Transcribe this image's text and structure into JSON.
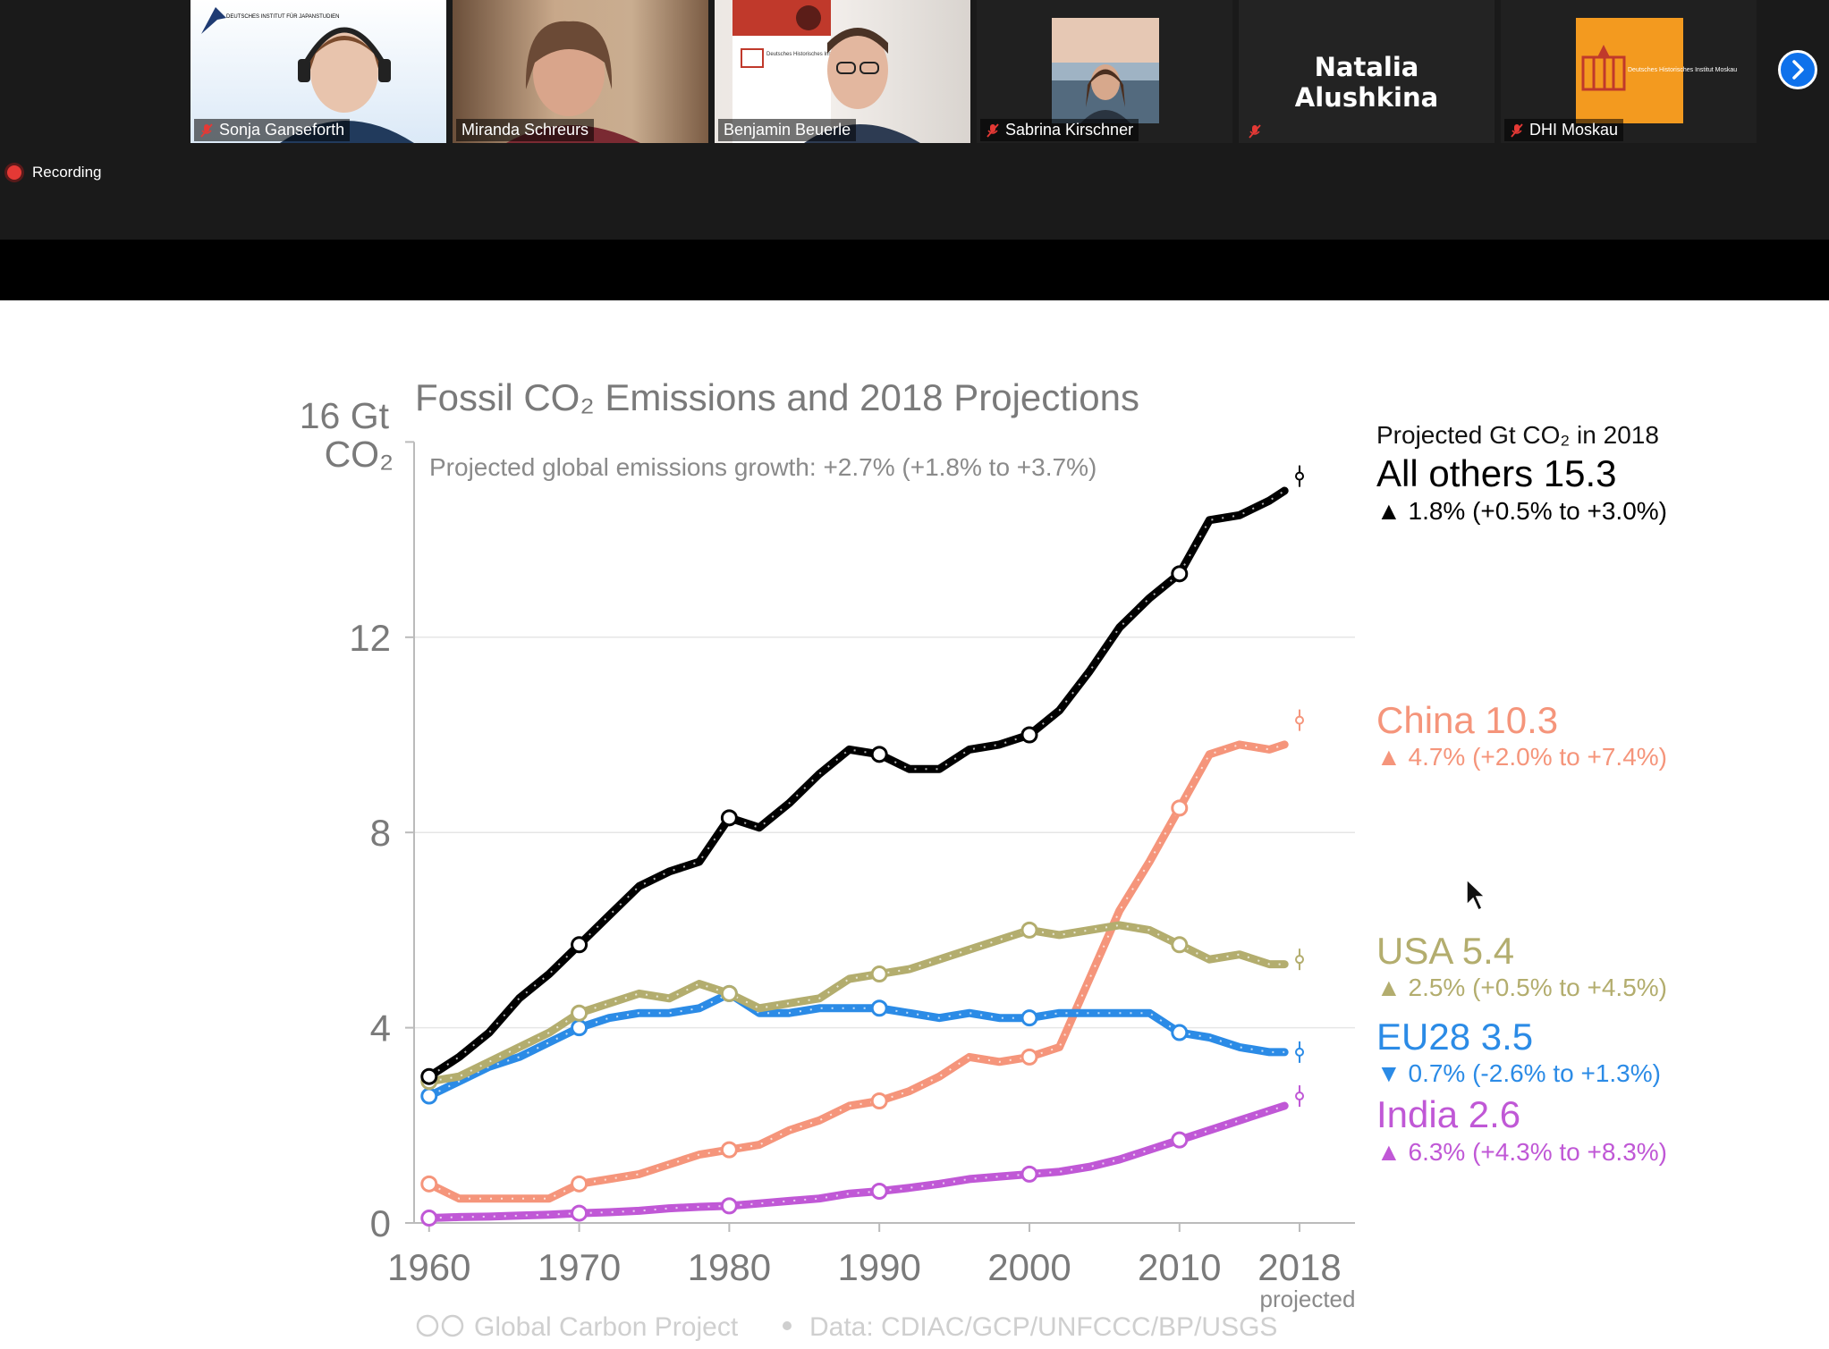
{
  "participants": [
    {
      "name": "Sonja Ganseforth",
      "muted": true,
      "logo_text": "DEUTSCHES INSTITUT FÜR JAPANSTUDIEN"
    },
    {
      "name": "Miranda Schreurs",
      "muted": false,
      "speaking": true
    },
    {
      "name": "Benjamin Beuerle",
      "muted": false,
      "poster_text": "Deutsches Historisches Institut Moskau"
    },
    {
      "name": "Sabrina Kirschner",
      "muted": true
    },
    {
      "name": "Natalia Alushkina",
      "muted": true
    },
    {
      "name": "DHI Moskau",
      "muted": true,
      "logo_text": "Deutsches Historisches Institut Moskau"
    }
  ],
  "recording_label": "Recording",
  "colors": {
    "accent": "#0e71eb",
    "speaking": "#8fd14f",
    "recording": "#e53935"
  },
  "slide": {
    "title": "Fossil CO₂ Emissions and 2018 Projections",
    "growth_note": "Projected global emissions growth: +2.7% (+1.8% to +3.7%)",
    "y_unit_line1": "16 Gt",
    "y_unit_line2": "CO₂",
    "projected_label": "projected",
    "footer_source": "Global Carbon Project",
    "footer_data": "Data: CDIAC/GCP/UNFCCC/BP/USGS",
    "legend_header": "Projected Gt CO₂ in 2018",
    "legend": [
      {
        "label": "All others 15.3",
        "growth": "▲ 1.8% (+0.5% to +3.0%)",
        "color": "#000000"
      },
      {
        "label": "China 10.3",
        "growth": "▲ 4.7% (+2.0% to +7.4%)",
        "color": "#f5957b"
      },
      {
        "label": "USA 5.4",
        "growth": "▲ 2.5% (+0.5% to +4.5%)",
        "color": "#b3ad6e"
      },
      {
        "label": "EU28 3.5",
        "growth": "▼ 0.7% (-2.6% to +1.3%)",
        "color": "#2b8be6"
      },
      {
        "label": "India 2.6",
        "growth": "▲ 6.3% (+4.3% to +8.3%)",
        "color": "#c058d6"
      }
    ]
  },
  "chart_data": {
    "type": "line",
    "title": "Fossil CO₂ Emissions and 2018 Projections",
    "ylabel": "Gt CO₂",
    "ylim": [
      0,
      16
    ],
    "xlim": [
      1959,
      2019
    ],
    "x_ticks": [
      "1960",
      "1970",
      "1980",
      "1990",
      "2000",
      "2010",
      "2018"
    ],
    "y_ticks": [
      "0",
      "4",
      "8",
      "12"
    ],
    "grid": true,
    "x": [
      1960,
      1962,
      1964,
      1966,
      1968,
      1970,
      1972,
      1974,
      1976,
      1978,
      1980,
      1982,
      1984,
      1986,
      1988,
      1990,
      1992,
      1994,
      1996,
      1998,
      2000,
      2002,
      2004,
      2006,
      2008,
      2010,
      2012,
      2014,
      2016,
      2017
    ],
    "series": [
      {
        "name": "All others",
        "color": "#000000",
        "projected": 15.3,
        "values": [
          3.0,
          3.4,
          3.9,
          4.6,
          5.1,
          5.7,
          6.3,
          6.9,
          7.2,
          7.4,
          8.3,
          8.1,
          8.6,
          9.2,
          9.7,
          9.6,
          9.3,
          9.3,
          9.7,
          9.8,
          10.0,
          10.5,
          11.3,
          12.2,
          12.8,
          13.3,
          14.4,
          14.5,
          14.8,
          15.0
        ]
      },
      {
        "name": "China",
        "color": "#f5957b",
        "projected": 10.3,
        "values": [
          0.8,
          0.5,
          0.5,
          0.5,
          0.5,
          0.8,
          0.9,
          1.0,
          1.2,
          1.4,
          1.5,
          1.6,
          1.9,
          2.1,
          2.4,
          2.5,
          2.7,
          3.0,
          3.4,
          3.3,
          3.4,
          3.6,
          5.0,
          6.4,
          7.4,
          8.5,
          9.6,
          9.8,
          9.7,
          9.8
        ]
      },
      {
        "name": "USA",
        "color": "#b3ad6e",
        "projected": 5.4,
        "values": [
          2.9,
          3.0,
          3.3,
          3.6,
          3.9,
          4.3,
          4.5,
          4.7,
          4.6,
          4.9,
          4.7,
          4.4,
          4.5,
          4.6,
          5.0,
          5.1,
          5.2,
          5.4,
          5.6,
          5.8,
          6.0,
          5.9,
          6.0,
          6.1,
          6.0,
          5.7,
          5.4,
          5.5,
          5.3,
          5.3
        ]
      },
      {
        "name": "EU28",
        "color": "#2b8be6",
        "projected": 3.5,
        "values": [
          2.6,
          2.9,
          3.2,
          3.4,
          3.7,
          4.0,
          4.2,
          4.3,
          4.3,
          4.4,
          4.7,
          4.3,
          4.3,
          4.4,
          4.4,
          4.4,
          4.3,
          4.2,
          4.3,
          4.2,
          4.2,
          4.3,
          4.3,
          4.3,
          4.3,
          3.9,
          3.8,
          3.6,
          3.5,
          3.5
        ]
      },
      {
        "name": "India",
        "color": "#c058d6",
        "projected": 2.6,
        "values": [
          0.1,
          0.12,
          0.13,
          0.15,
          0.17,
          0.2,
          0.22,
          0.25,
          0.3,
          0.33,
          0.35,
          0.4,
          0.45,
          0.5,
          0.6,
          0.65,
          0.72,
          0.8,
          0.9,
          0.95,
          1.0,
          1.05,
          1.15,
          1.3,
          1.5,
          1.7,
          1.9,
          2.1,
          2.3,
          2.4
        ]
      }
    ]
  }
}
